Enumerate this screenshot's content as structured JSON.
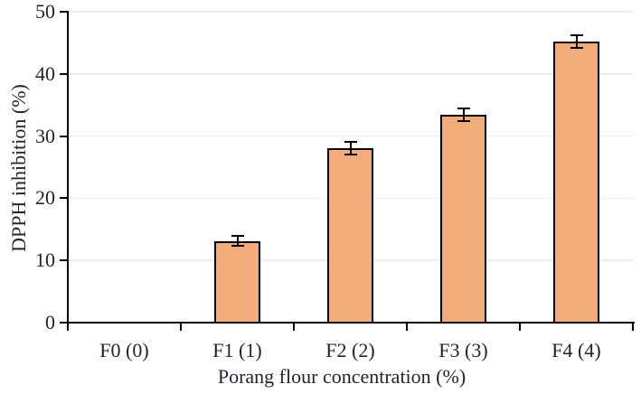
{
  "chart_data": {
    "type": "bar",
    "title": "",
    "xlabel": "Porang flour concentration (%)",
    "ylabel": "DPPH inhibition (%)",
    "categories": [
      "F0 (0)",
      "F1 (1)",
      "F2 (2)",
      "F3 (3)",
      "F4 (4)"
    ],
    "values": [
      0,
      13.1,
      28.0,
      33.4,
      45.2
    ],
    "errors": [
      0,
      0.8,
      1.0,
      1.0,
      1.0
    ],
    "ylim": [
      0,
      50
    ],
    "yticks": [
      0,
      10,
      20,
      30,
      40,
      50
    ],
    "grid": "horizontal",
    "legend_position": "none",
    "colors": {
      "bar_fill": "#F3AC7C",
      "bar_border": "#000000",
      "error_bar": "#000000",
      "gridline": "#ECECEC",
      "axis": "#000000",
      "text": "#23232E",
      "background": "#FFFFFF"
    }
  }
}
